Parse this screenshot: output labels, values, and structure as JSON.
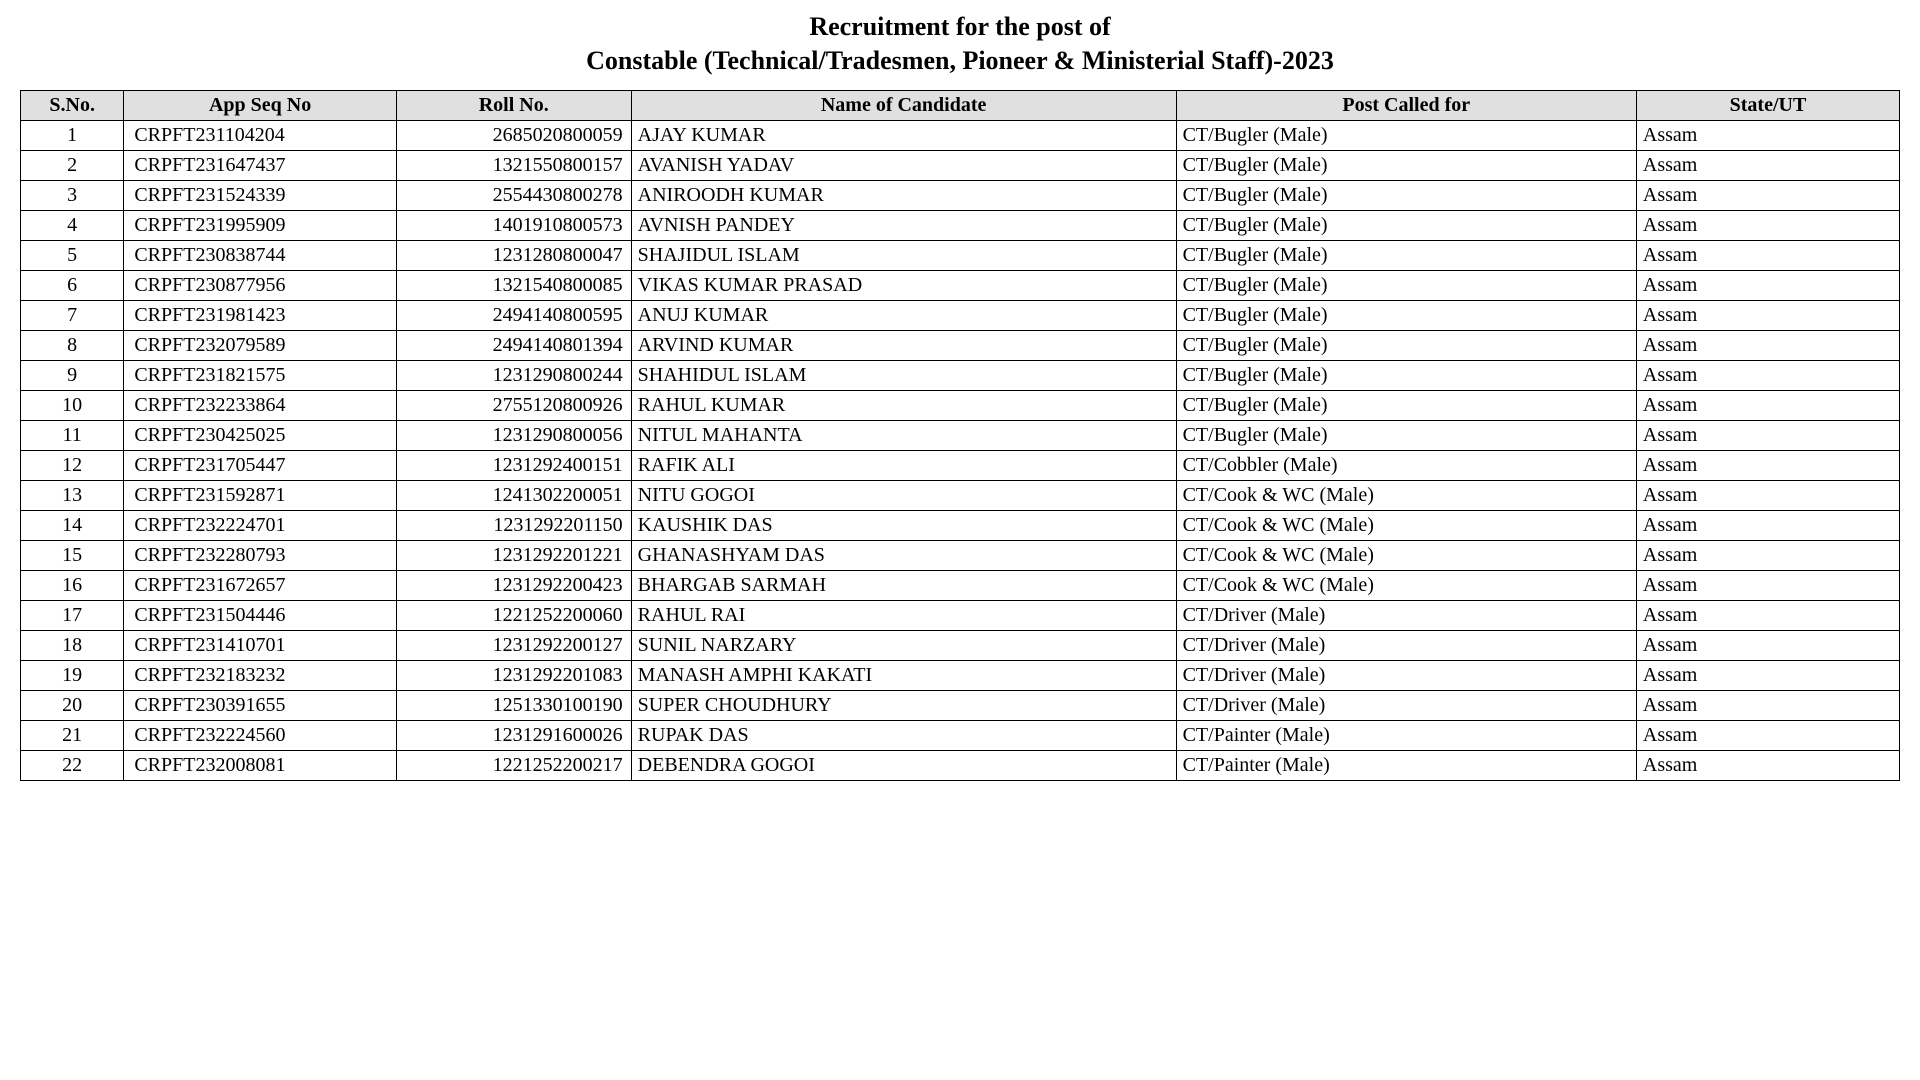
{
  "title_line1": "Recruitment for the post of",
  "title_line2": "Constable (Technical/Tradesmen, Pioneer & Ministerial Staff)-2023",
  "table": {
    "header_bg": "#e0e0e0",
    "border_color": "#000000",
    "font_family": "Georgia, 'Times New Roman', serif",
    "header_fontsize": 20,
    "cell_fontsize": 20,
    "columns": [
      {
        "key": "sno",
        "label": "S.No.",
        "width_pct": 5.5,
        "align": "center"
      },
      {
        "key": "app",
        "label": "App Seq No",
        "width_pct": 14.5,
        "align": "left"
      },
      {
        "key": "roll",
        "label": "Roll No.",
        "width_pct": 12.5,
        "align": "right"
      },
      {
        "key": "name",
        "label": "Name of Candidate",
        "width_pct": 29.0,
        "align": "left"
      },
      {
        "key": "post",
        "label": "Post Called for",
        "width_pct": 24.5,
        "align": "left"
      },
      {
        "key": "state",
        "label": "State/UT",
        "width_pct": 14.0,
        "align": "left"
      }
    ],
    "rows": [
      {
        "sno": "1",
        "app": "CRPFT231104204",
        "roll": "2685020800059",
        "name": "AJAY KUMAR",
        "post": "CT/Bugler (Male)",
        "state": "Assam"
      },
      {
        "sno": "2",
        "app": "CRPFT231647437",
        "roll": "1321550800157",
        "name": "AVANISH YADAV",
        "post": "CT/Bugler (Male)",
        "state": "Assam"
      },
      {
        "sno": "3",
        "app": "CRPFT231524339",
        "roll": "2554430800278",
        "name": "ANIROODH KUMAR",
        "post": "CT/Bugler (Male)",
        "state": "Assam"
      },
      {
        "sno": "4",
        "app": "CRPFT231995909",
        "roll": "1401910800573",
        "name": "AVNISH PANDEY",
        "post": "CT/Bugler (Male)",
        "state": "Assam"
      },
      {
        "sno": "5",
        "app": "CRPFT230838744",
        "roll": "1231280800047",
        "name": "SHAJIDUL ISLAM",
        "post": "CT/Bugler (Male)",
        "state": "Assam"
      },
      {
        "sno": "6",
        "app": "CRPFT230877956",
        "roll": "1321540800085",
        "name": "VIKAS KUMAR PRASAD",
        "post": "CT/Bugler (Male)",
        "state": "Assam"
      },
      {
        "sno": "7",
        "app": "CRPFT231981423",
        "roll": "2494140800595",
        "name": "ANUJ KUMAR",
        "post": "CT/Bugler (Male)",
        "state": "Assam"
      },
      {
        "sno": "8",
        "app": "CRPFT232079589",
        "roll": "2494140801394",
        "name": "ARVIND KUMAR",
        "post": "CT/Bugler (Male)",
        "state": "Assam"
      },
      {
        "sno": "9",
        "app": "CRPFT231821575",
        "roll": "1231290800244",
        "name": "SHAHIDUL ISLAM",
        "post": "CT/Bugler (Male)",
        "state": "Assam"
      },
      {
        "sno": "10",
        "app": "CRPFT232233864",
        "roll": "2755120800926",
        "name": "RAHUL KUMAR",
        "post": "CT/Bugler (Male)",
        "state": "Assam"
      },
      {
        "sno": "11",
        "app": "CRPFT230425025",
        "roll": "1231290800056",
        "name": "NITUL MAHANTA",
        "post": "CT/Bugler (Male)",
        "state": "Assam"
      },
      {
        "sno": "12",
        "app": "CRPFT231705447",
        "roll": "1231292400151",
        "name": "RAFIK ALI",
        "post": "CT/Cobbler (Male)",
        "state": "Assam"
      },
      {
        "sno": "13",
        "app": "CRPFT231592871",
        "roll": "1241302200051",
        "name": "NITU GOGOI",
        "post": "CT/Cook & WC (Male)",
        "state": "Assam"
      },
      {
        "sno": "14",
        "app": "CRPFT232224701",
        "roll": "1231292201150",
        "name": "KAUSHIK DAS",
        "post": "CT/Cook & WC (Male)",
        "state": "Assam"
      },
      {
        "sno": "15",
        "app": "CRPFT232280793",
        "roll": "1231292201221",
        "name": "GHANASHYAM DAS",
        "post": "CT/Cook & WC (Male)",
        "state": "Assam"
      },
      {
        "sno": "16",
        "app": "CRPFT231672657",
        "roll": "1231292200423",
        "name": "BHARGAB SARMAH",
        "post": "CT/Cook & WC (Male)",
        "state": "Assam"
      },
      {
        "sno": "17",
        "app": "CRPFT231504446",
        "roll": "1221252200060",
        "name": "RAHUL RAI",
        "post": "CT/Driver (Male)",
        "state": "Assam"
      },
      {
        "sno": "18",
        "app": "CRPFT231410701",
        "roll": "1231292200127",
        "name": "SUNIL NARZARY",
        "post": "CT/Driver (Male)",
        "state": "Assam"
      },
      {
        "sno": "19",
        "app": "CRPFT232183232",
        "roll": "1231292201083",
        "name": "MANASH AMPHI KAKATI",
        "post": "CT/Driver (Male)",
        "state": "Assam"
      },
      {
        "sno": "20",
        "app": "CRPFT230391655",
        "roll": "1251330100190",
        "name": "SUPER CHOUDHURY",
        "post": "CT/Driver (Male)",
        "state": "Assam"
      },
      {
        "sno": "21",
        "app": "CRPFT232224560",
        "roll": "1231291600026",
        "name": "RUPAK DAS",
        "post": "CT/Painter (Male)",
        "state": "Assam"
      },
      {
        "sno": "22",
        "app": "CRPFT232008081",
        "roll": "1221252200217",
        "name": "DEBENDRA GOGOI",
        "post": "CT/Painter (Male)",
        "state": "Assam"
      }
    ]
  }
}
